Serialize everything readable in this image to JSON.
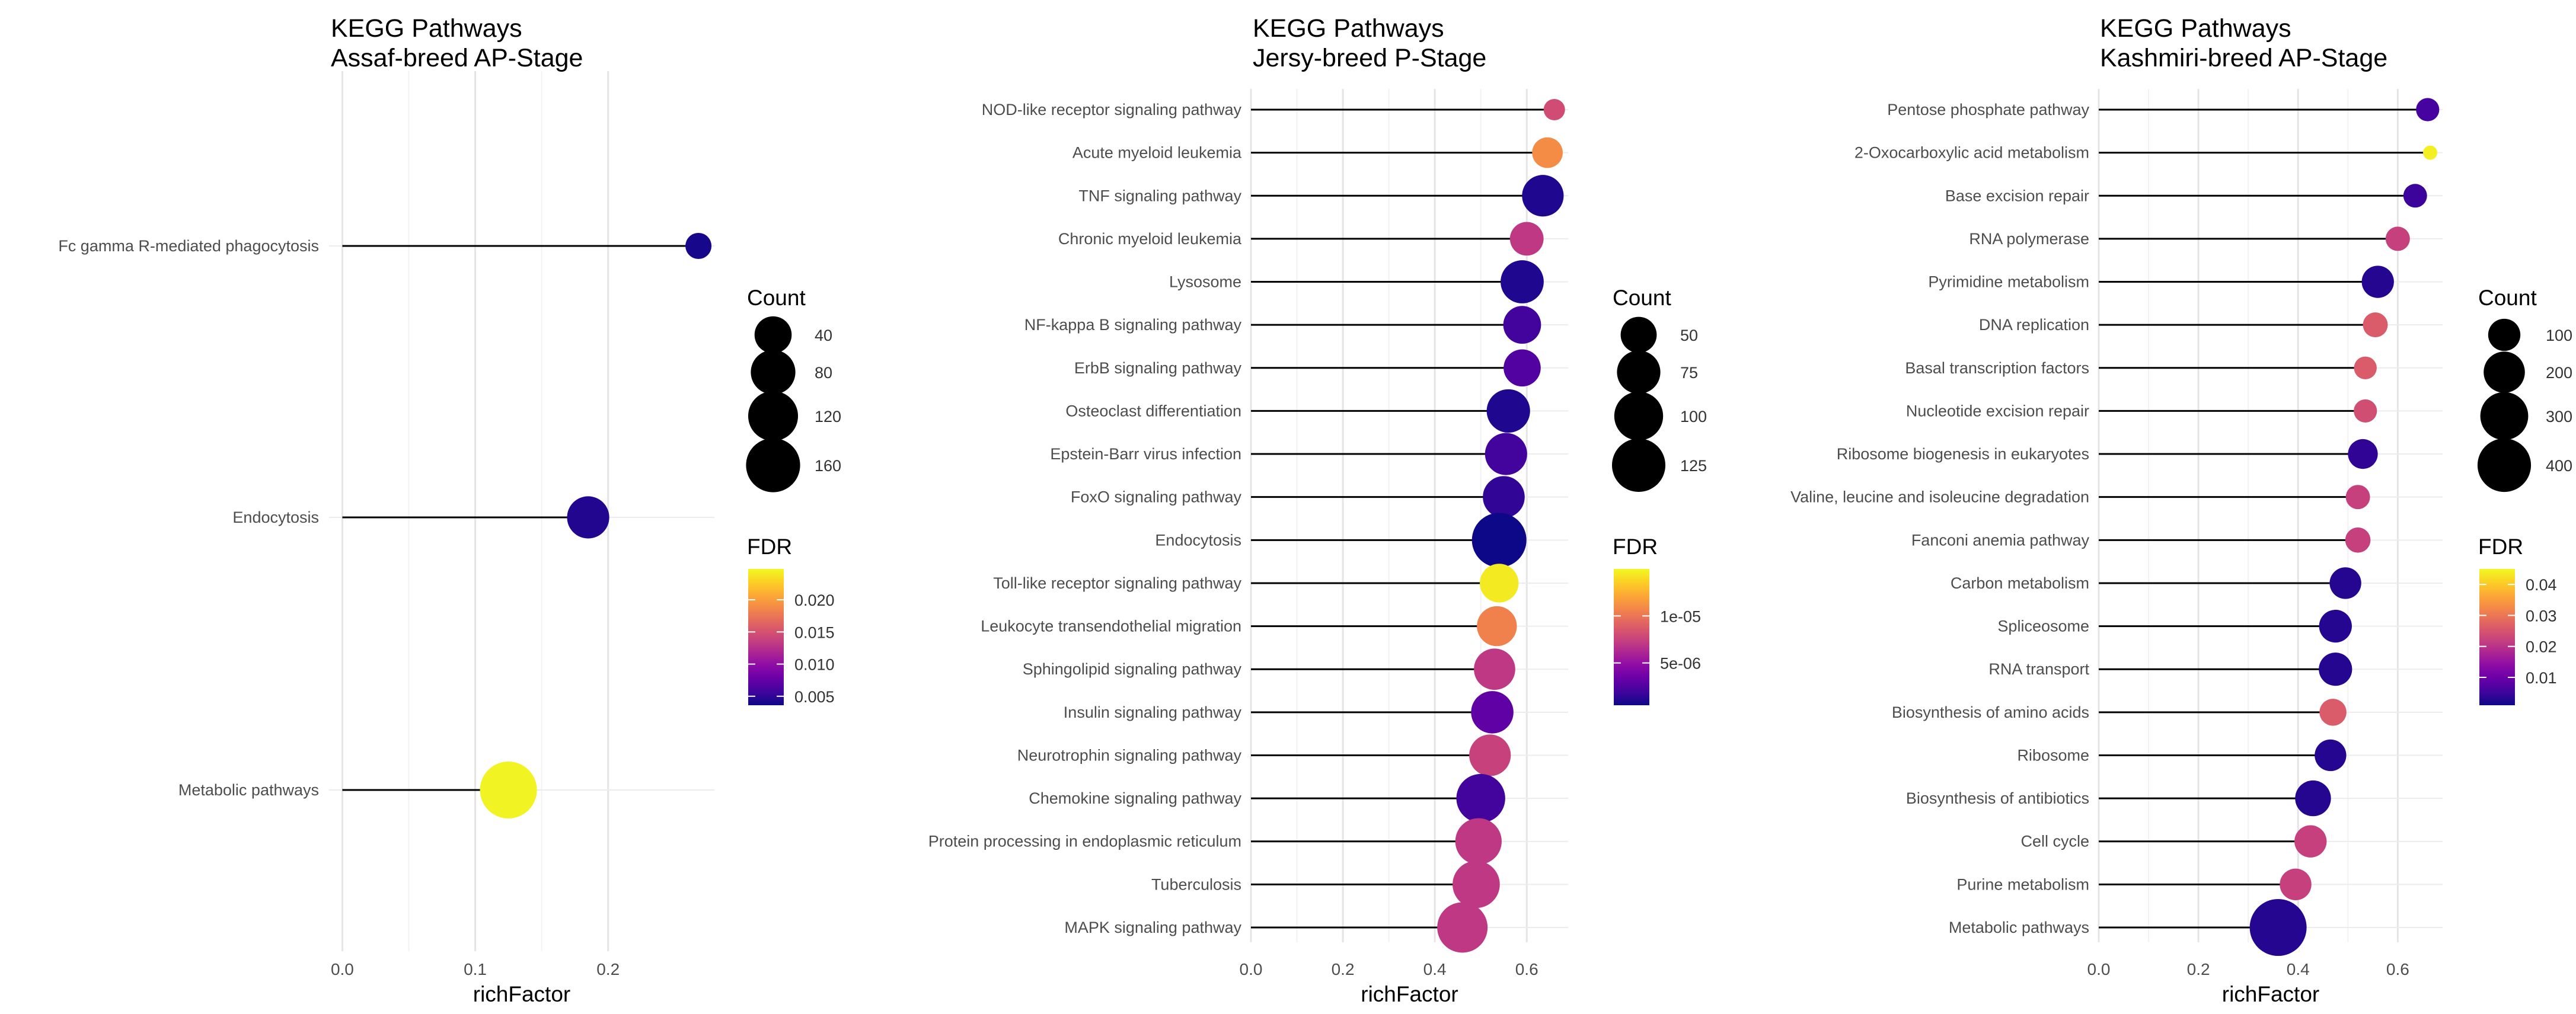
{
  "chart_data": [
    {
      "type": "lollipop",
      "title": "KEGG Pathways",
      "subtitle": "Assaf-breed AP-Stage",
      "xlabel": "richFactor",
      "xlim": [
        -0.01,
        0.28
      ],
      "xticks": [
        0.0,
        0.1,
        0.2
      ],
      "xtick_labels": [
        "0.0",
        "0.1",
        "0.2"
      ],
      "grid": true,
      "categories": [
        "Fc gamma R-mediated phagocytosis",
        "Endocytosis",
        "Metabolic pathways"
      ],
      "richFactor": [
        0.268,
        0.185,
        0.125
      ],
      "count": [
        18,
        65,
        190
      ],
      "fdr": [
        0.004,
        0.0045,
        0.0245
      ],
      "legend_count": {
        "title": "Count",
        "values": [
          40,
          80,
          120,
          160
        ],
        "labels": [
          "40",
          "80",
          "120",
          "160"
        ],
        "range": [
          18,
          190
        ]
      },
      "legend_fdr": {
        "title": "FDR",
        "ticks": [
          0.005,
          0.01,
          0.015,
          0.02
        ],
        "labels": [
          "0.005",
          "0.010",
          "0.015",
          "0.020"
        ],
        "range": [
          0.0036,
          0.0248
        ]
      }
    },
    {
      "type": "lollipop",
      "title": "KEGG Pathways",
      "subtitle": "Jersy-breed P-Stage",
      "xlabel": "richFactor",
      "xlim": [
        0.0,
        0.69
      ],
      "xticks": [
        0.0,
        0.2,
        0.4,
        0.6
      ],
      "xtick_labels": [
        "0.0",
        "0.2",
        "0.4",
        "0.6"
      ],
      "grid": true,
      "categories": [
        "NOD-like receptor signaling pathway",
        "Acute myeloid leukemia",
        "TNF signaling pathway",
        "Chronic myeloid leukemia",
        "Lysosome",
        "NF-kappa B signaling pathway",
        "ErbB signaling pathway",
        "Osteoclast differentiation",
        "Epstein-Barr virus infection",
        "FoxO signaling pathway",
        "Endocytosis",
        "Toll-like receptor signaling pathway",
        "Leukocyte transendothelial migration",
        "Sphingolipid signaling pathway",
        "Insulin signaling pathway",
        "Neurotrophin signaling pathway",
        "Chemokine signaling pathway",
        "Protein processing in endoplasmic reticulum",
        "Tuberculosis",
        "MAPK signaling pathway"
      ],
      "richFactor": [
        0.66,
        0.645,
        0.635,
        0.6,
        0.59,
        0.59,
        0.59,
        0.56,
        0.555,
        0.55,
        0.54,
        0.54,
        0.535,
        0.53,
        0.525,
        0.52,
        0.5,
        0.495,
        0.49,
        0.46
      ],
      "count": [
        30,
        38,
        68,
        44,
        74,
        55,
        53,
        75,
        70,
        69,
        132,
        58,
        62,
        67,
        71,
        68,
        100,
        88,
        92,
        108
      ],
      "fdr": [
        8e-06,
        1.1e-05,
        1e-06,
        7e-06,
        1e-06,
        2e-06,
        2.5e-06,
        1e-06,
        2e-06,
        1.5e-06,
        5e-07,
        1.45e-05,
        1.05e-05,
        7e-06,
        3e-06,
        7.5e-06,
        2e-06,
        7e-06,
        7e-06,
        7e-06
      ],
      "legend_count": {
        "title": "Count",
        "values": [
          50,
          75,
          100,
          125
        ],
        "labels": [
          "50",
          "75",
          "100",
          "125"
        ],
        "range": [
          30,
          132
        ]
      },
      "legend_fdr": {
        "title": "FDR",
        "ticks": [
          5e-06,
          1e-05
        ],
        "labels": [
          "5e-06",
          "1e-05"
        ],
        "range": [
          5e-07,
          1.5e-05
        ]
      }
    },
    {
      "type": "lollipop",
      "title": "KEGG Pathways",
      "subtitle": "Kashmiri-breed AP-Stage",
      "xlabel": "richFactor",
      "xlim": [
        0.0,
        0.69
      ],
      "xticks": [
        0.0,
        0.2,
        0.4,
        0.6
      ],
      "xtick_labels": [
        "0.0",
        "0.2",
        "0.4",
        "0.6"
      ],
      "grid": true,
      "categories": [
        "Pentose phosphate pathway",
        "2-Oxocarboxylic acid metabolism",
        "Base excision repair",
        "RNA polymerase",
        "Pyrimidine metabolism",
        "DNA replication",
        "Basal transcription factors",
        "Nucleotide excision repair",
        "Ribosome biogenesis in eukaryotes",
        "Valine, leucine and isoleucine degradation",
        "Fanconi anemia pathway",
        "Carbon metabolism",
        "Spliceosome",
        "RNA transport",
        "Biosynthesis of amino acids",
        "Ribosome",
        "Biosynthesis of antibiotics",
        "Cell cycle",
        "Purine metabolism",
        "Metabolic pathways"
      ],
      "richFactor": [
        0.66,
        0.665,
        0.635,
        0.6,
        0.56,
        0.555,
        0.535,
        0.535,
        0.53,
        0.52,
        0.52,
        0.495,
        0.475,
        0.475,
        0.47,
        0.465,
        0.43,
        0.425,
        0.395,
        0.36
      ],
      "count": [
        40,
        20,
        42,
        45,
        100,
        48,
        38,
        40,
        80,
        45,
        50,
        95,
        105,
        110,
        60,
        95,
        135,
        100,
        95,
        470
      ],
      "fdr": [
        0.006,
        0.044,
        0.005,
        0.022,
        0.003,
        0.026,
        0.026,
        0.024,
        0.004,
        0.022,
        0.022,
        0.003,
        0.003,
        0.003,
        0.026,
        0.003,
        0.003,
        0.022,
        0.022,
        0.003
      ],
      "legend_count": {
        "title": "Count",
        "values": [
          100,
          200,
          300,
          400
        ],
        "labels": [
          "100",
          "200",
          "300",
          "400"
        ],
        "range": [
          20,
          470
        ]
      },
      "legend_fdr": {
        "title": "FDR",
        "ticks": [
          0.01,
          0.02,
          0.03,
          0.04
        ],
        "labels": [
          "0.01",
          "0.02",
          "0.03",
          "0.04"
        ],
        "range": [
          0.001,
          0.045
        ]
      }
    }
  ]
}
